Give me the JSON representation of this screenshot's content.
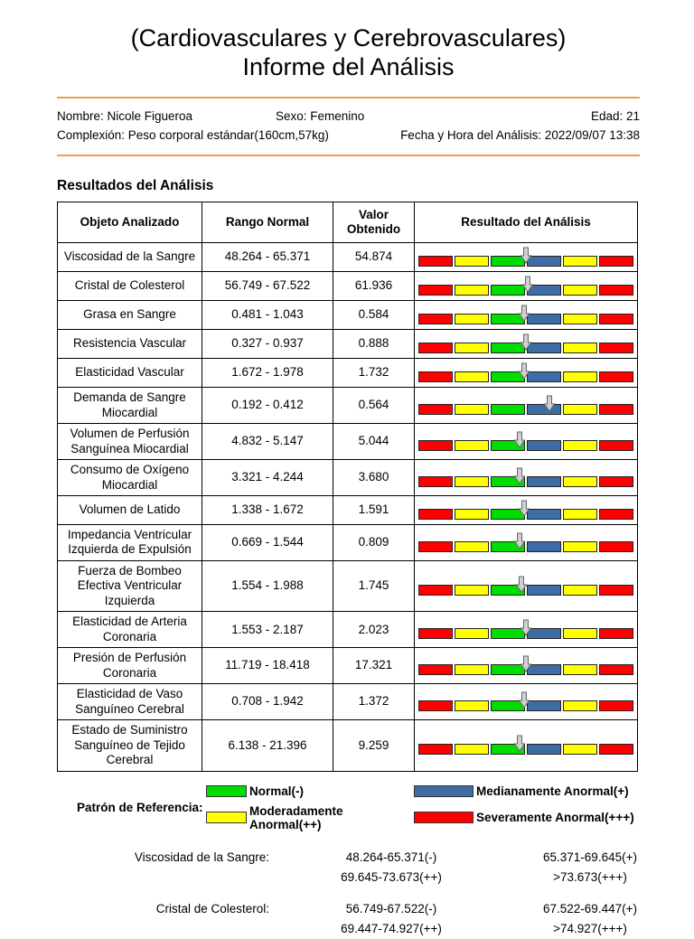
{
  "colors": {
    "green": "#00dd00",
    "blue": "#3d6da4",
    "yellow": "#ffff00",
    "red": "#ff0000",
    "divider_orange": "#ef9e4a",
    "arrow_gray": "#d0d0d0"
  },
  "title": {
    "line1": "(Cardiovasculares y Cerebrovasculares)",
    "line2": "Informe del Análisis"
  },
  "patient": {
    "name": "Nombre: Nicole Figueroa",
    "sex": "Sexo: Femenino",
    "age": "Edad: 21",
    "build": "Complexión: Peso corporal estándar(160cm,57kg)",
    "datetime": "Fecha y Hora del Análisis: 2022/09/07 13:38"
  },
  "section_title": "Resultados del Análisis",
  "table": {
    "headers": [
      "Objeto Analizado",
      "Rango Normal",
      "Valor Obtenido",
      "Resultado del Análisis"
    ],
    "bar_segments": [
      "red",
      "yellow",
      "green",
      "blue",
      "yellow",
      "red"
    ],
    "rows": [
      {
        "item": "Viscosidad de la Sangre",
        "range": "48.264 - 65.371",
        "value": "54.874",
        "arrow_pct": 50
      },
      {
        "item": "Cristal de Colesterol",
        "range": "56.749 - 67.522",
        "value": "61.936",
        "arrow_pct": 51
      },
      {
        "item": "Grasa en Sangre",
        "range": "0.481 - 1.043",
        "value": "0.584",
        "arrow_pct": 49
      },
      {
        "item": "Resistencia Vascular",
        "range": "0.327 - 0.937",
        "value": "0.888",
        "arrow_pct": 50
      },
      {
        "item": "Elasticidad Vascular",
        "range": "1.672 - 1.978",
        "value": "1.732",
        "arrow_pct": 49
      },
      {
        "item": "Demanda de Sangre Miocardial",
        "range": "0.192 - 0.412",
        "value": "0.564",
        "arrow_pct": 61
      },
      {
        "item": "Volumen de Perfusión Sanguínea Miocardial",
        "range": "4.832 - 5.147",
        "value": "5.044",
        "arrow_pct": 47
      },
      {
        "item": "Consumo de Oxígeno Miocardial",
        "range": "3.321 - 4.244",
        "value": "3.680",
        "arrow_pct": 47
      },
      {
        "item": "Volumen de Latido",
        "range": "1.338 - 1.672",
        "value": "1.591",
        "arrow_pct": 49
      },
      {
        "item": "Impedancia Ventricular Izquierda de Expulsión",
        "range": "0.669 - 1.544",
        "value": "0.809",
        "arrow_pct": 47
      },
      {
        "item": "Fuerza de Bombeo Efectiva Ventricular Izquierda",
        "range": "1.554 - 1.988",
        "value": "1.745",
        "arrow_pct": 48
      },
      {
        "item": "Elasticidad de Arteria Coronaria",
        "range": "1.553 - 2.187",
        "value": "2.023",
        "arrow_pct": 50
      },
      {
        "item": "Presión de Perfusión Coronaria",
        "range": "11.719 - 18.418",
        "value": "17.321",
        "arrow_pct": 50
      },
      {
        "item": "Elasticidad de Vaso Sanguíneo Cerebral",
        "range": "0.708 - 1.942",
        "value": "1.372",
        "arrow_pct": 49
      },
      {
        "item": "Estado de Suministro Sanguíneo de Tejido Cerebral",
        "range": "6.138 - 21.396",
        "value": "9.259",
        "arrow_pct": 47
      }
    ]
  },
  "legend": {
    "label": "Patrón de Referencia:",
    "items": [
      {
        "color": "green",
        "text": "Normal(-)"
      },
      {
        "color": "blue",
        "text": "Medianamente Anormal(+)"
      },
      {
        "color": "yellow",
        "text": "Moderadamente Anormal(++)"
      },
      {
        "color": "red",
        "text": "Severamente Anormal(+++)"
      }
    ]
  },
  "references": [
    {
      "name": "Viscosidad de la Sangre:",
      "rows": [
        [
          "48.264-65.371(-)",
          "65.371-69.645(+)"
        ],
        [
          "69.645-73.673(++)",
          ">73.673(+++)"
        ]
      ]
    },
    {
      "name": "Cristal de Colesterol:",
      "rows": [
        [
          "56.749-67.522(-)",
          "67.522-69.447(+)"
        ],
        [
          "69.447-74.927(++)",
          ">74.927(+++)"
        ]
      ]
    }
  ]
}
